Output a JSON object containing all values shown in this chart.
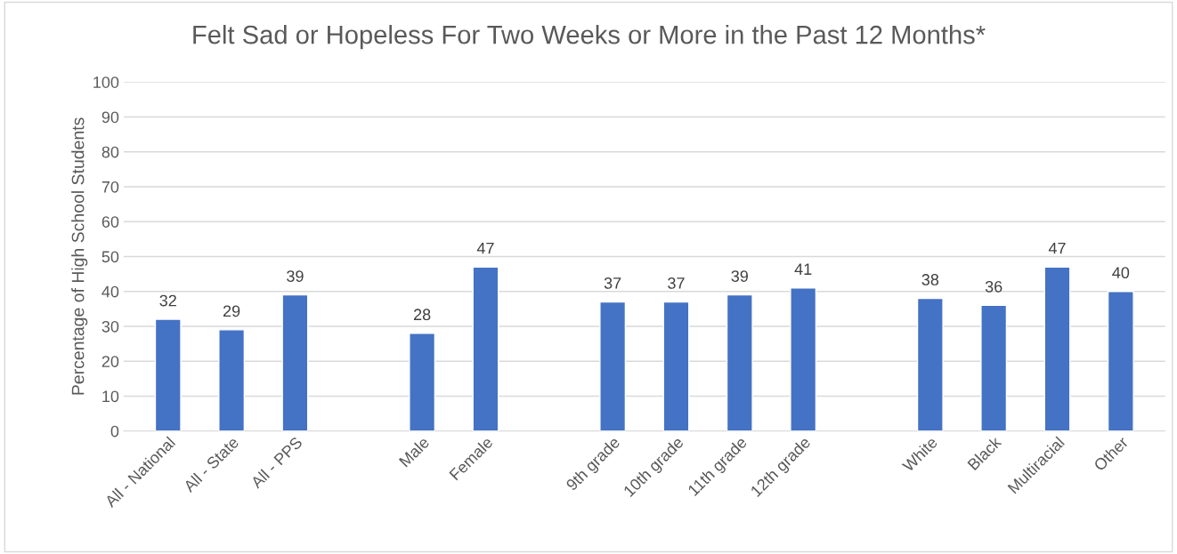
{
  "chart_data": {
    "type": "bar",
    "title": "Felt Sad or Hopeless For Two Weeks or More in the Past 12 Months*",
    "ylabel": "Percentage of High School Students",
    "categories": [
      "All - National",
      "All - State",
      "All - PPS",
      null,
      "Male",
      "Female",
      null,
      "9th grade",
      "10th grade",
      "11th grade",
      "12th grade",
      null,
      "White",
      "Black",
      "Multiracial",
      "Other"
    ],
    "values": [
      32,
      29,
      39,
      null,
      28,
      47,
      null,
      37,
      37,
      39,
      41,
      null,
      38,
      36,
      47,
      40
    ],
    "color": "#4472c4",
    "ylim": [
      0,
      100
    ],
    "yticks": [
      0,
      10,
      20,
      30,
      40,
      50,
      60,
      70,
      80,
      90,
      100
    ],
    "grid": "y",
    "data_labels": true
  }
}
